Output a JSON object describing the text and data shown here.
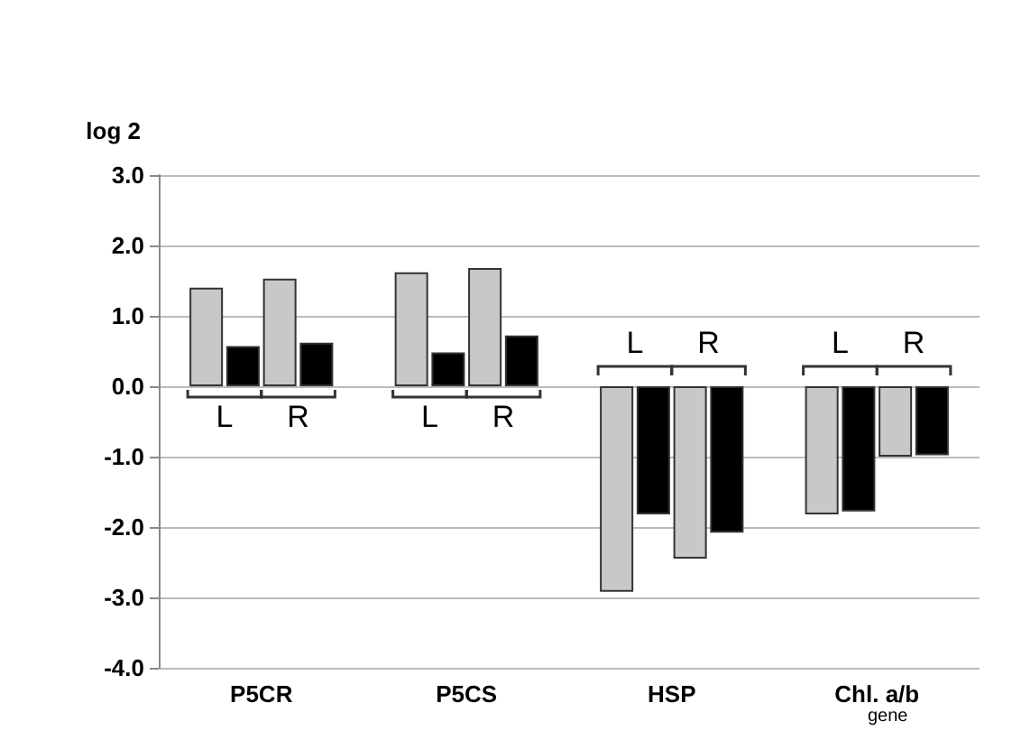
{
  "chart_data": {
    "type": "bar",
    "ylabel": "log 2",
    "xlabel": "gene",
    "categories": [
      "P5CR",
      "P5CS",
      "HSP",
      "Chl. a/b"
    ],
    "series": [
      {
        "color": "#c8c8c8",
        "values": [
          1.4,
          1.62,
          -2.92,
          -1.82
        ]
      },
      {
        "color": "#000000",
        "values": [
          0.57,
          0.48,
          -1.82,
          -1.78
        ]
      },
      {
        "color": "#c8c8c8",
        "values": [
          1.53,
          1.68,
          -2.45,
          -1.0
        ]
      },
      {
        "color": "#000000",
        "values": [
          0.62,
          0.72,
          -2.08,
          -0.98
        ]
      }
    ],
    "ylim": [
      -4,
      3
    ],
    "yticks": [
      {
        "value": -4,
        "label": "-4.0"
      },
      {
        "value": -3,
        "label": "-3.0"
      },
      {
        "value": -2,
        "label": "-2.0"
      },
      {
        "value": -1,
        "label": "-1.0"
      },
      {
        "value": 0,
        "label": "0.0"
      },
      {
        "value": 1,
        "label": "1.0"
      },
      {
        "value": 2,
        "label": "2.0"
      },
      {
        "value": 3,
        "label": "3.0"
      }
    ],
    "grid": "y",
    "annotations": [
      {
        "text": "L",
        "x": "P5CR",
        "y": 0
      },
      {
        "text": "R",
        "x": "P5CR",
        "y": 0
      },
      {
        "text": "L",
        "x": "P5CS",
        "y": 0
      },
      {
        "text": "R",
        "x": "P5CS",
        "y": 0
      },
      {
        "text": "L",
        "x": "HSP",
        "y": 0
      },
      {
        "text": "R",
        "x": "HSP",
        "y": 0
      },
      {
        "text": "L",
        "x": "Chl. a/b",
        "y": 0
      },
      {
        "text": "R",
        "x": "Chl. a/b",
        "y": 0
      }
    ]
  }
}
